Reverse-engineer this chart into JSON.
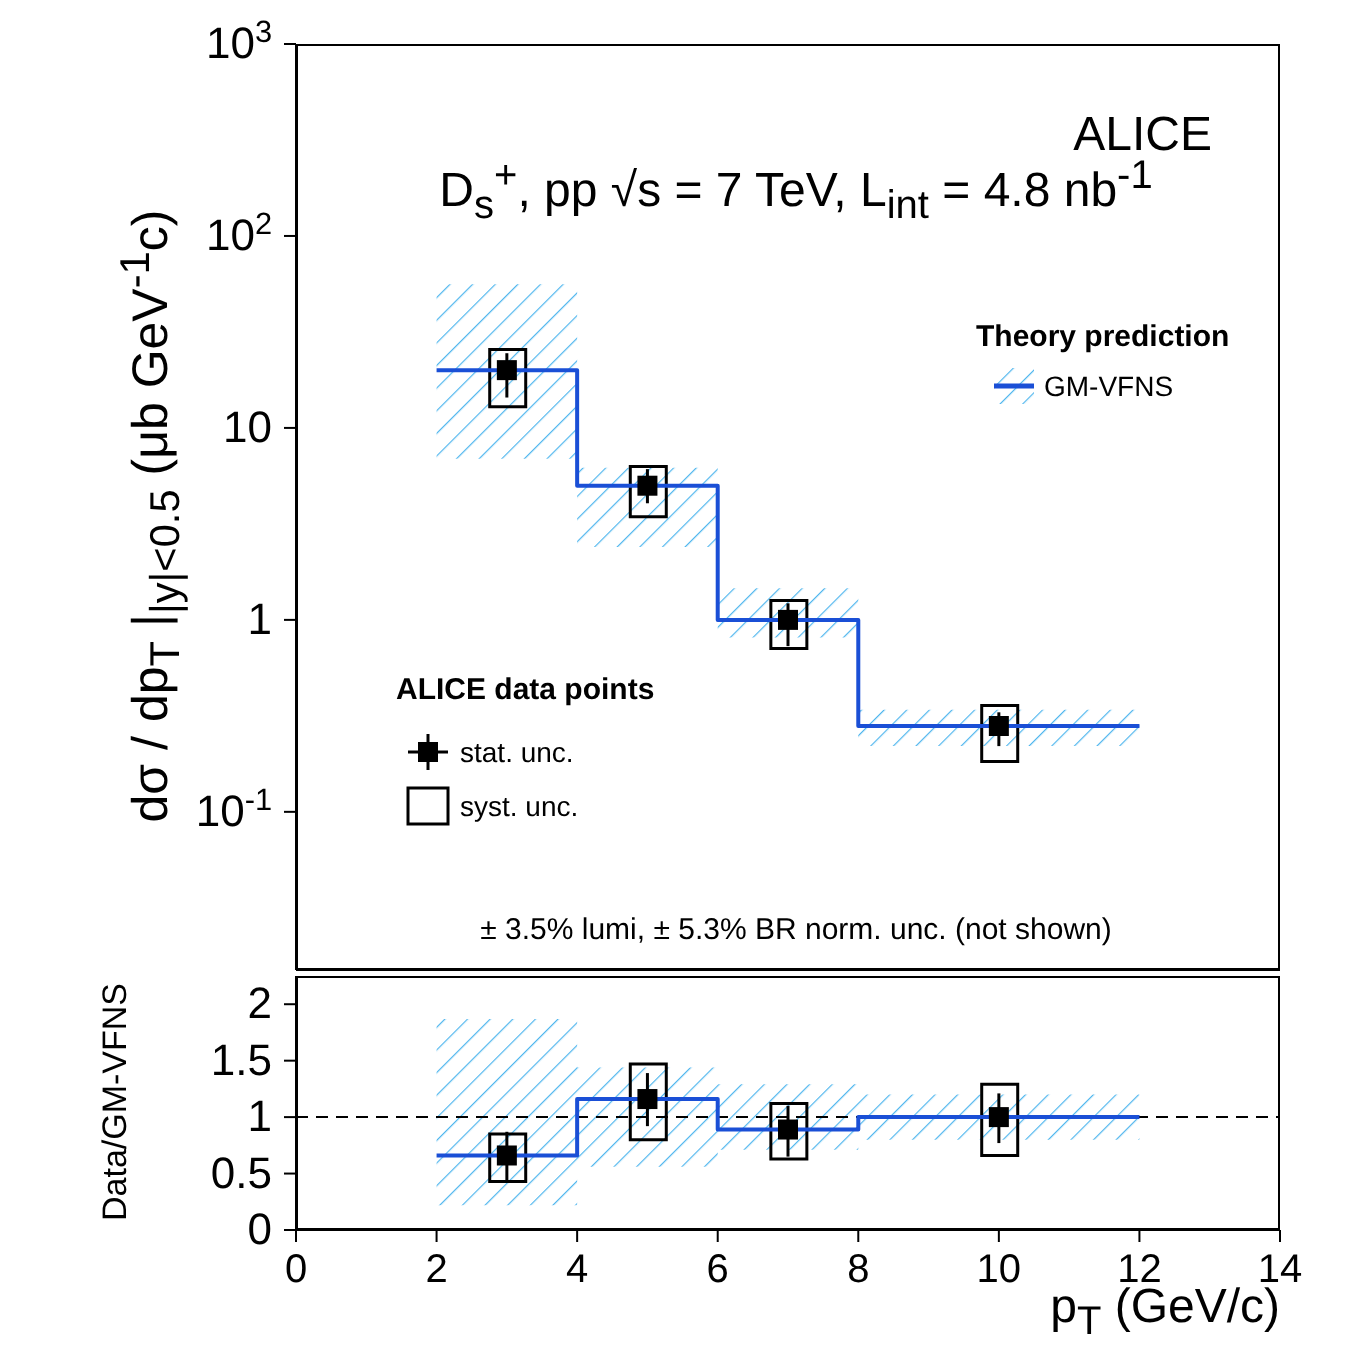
{
  "chart_data": [
    {
      "type": "scatter",
      "title": "D$_{s}$$^{+}$, pp √s = 7 TeV, L$_{int}$ = 4.8 nb$^{-1}$",
      "ylabel": "dσ / dp$_{T}$ |$_{|y|<0.5}$ (μb GeV$^{-1}$c)",
      "legend_title": "Theory prediction",
      "legend": "left",
      "annotations": [
        "ALICE",
        "ALICE data points",
        "± 3.5% lumi, ± 5.3% BR norm. unc. (not shown)"
      ],
      "log": "y",
      "xlim": [
        0,
        14
      ],
      "xticks": [
        0,
        2,
        4,
        6,
        8,
        10,
        12,
        14
      ],
      "ylim": [
        0.015,
        1000
      ],
      "yticks": [
        {
          "value": 0.1,
          "label": "10$^{-1}$"
        },
        1,
        10,
        {
          "value": 100,
          "label": "10$^{2}$"
        },
        {
          "value": 1000,
          "label": "10$^{3}$"
        }
      ],
      "tick_labels": "y",
      "series": [
        {
          "type": "step",
          "name": "GM-VFNS",
          "color": "#1a4fd6",
          "marker": "none",
          "x": [
            2,
            4,
            6,
            8,
            12
          ],
          "values": [
            20,
            5,
            1,
            0.28,
            0.28
          ],
          "lower": [
            6.9,
            2.4,
            0.81,
            0.22,
            0.22
          ],
          "upper": [
            56,
            6.2,
            1.46,
            0.34,
            0.34
          ]
        },
        {
          "name": "stat. unc.",
          "color": "#000000",
          "marker": "square",
          "x": [
            3,
            5,
            7,
            10
          ],
          "values": [
            20,
            5,
            1,
            0.28
          ],
          "errors": [
            [
              14.4,
              24.5
            ],
            [
              4.05,
              6.1
            ],
            [
              0.73,
              1.22
            ],
            [
              0.22,
              0.33
            ]
          ]
        },
        {
          "type": "bar",
          "name": "syst. unc.",
          "color": "#000000",
          "x": [
            3,
            5,
            7,
            10
          ],
          "base": [
            12.9,
            3.45,
            0.71,
            0.183
          ],
          "values": [
            12.7,
            2.85,
            0.55,
            0.175
          ]
        }
      ]
    },
    {
      "type": "scatter",
      "xlabel": "p$_{T}$ (GeV/c)",
      "ylabel": "Data/GM-VFNS",
      "xlim": [
        0,
        14
      ],
      "xticks": [
        0,
        2,
        4,
        6,
        8,
        10,
        12,
        14
      ],
      "ylim": [
        0,
        2.25
      ],
      "yticks": [
        0,
        0.5,
        1,
        1.5,
        2
      ],
      "ref_lines": [
        {
          "axis": "y",
          "value": 1,
          "color": "#000000",
          "line_style": "dashed"
        }
      ],
      "series": [
        {
          "type": "step",
          "color": "#1a4fd6",
          "marker": "none",
          "x": [
            2,
            4,
            6,
            8,
            12
          ],
          "values": [
            0.66,
            1.16,
            0.89,
            1.0,
            1.0
          ],
          "lower": [
            0.22,
            0.56,
            0.71,
            0.8,
            0.8
          ],
          "upper": [
            1.87,
            1.44,
            1.29,
            1.2,
            1.2
          ]
        },
        {
          "color": "#000000",
          "marker": "square",
          "x": [
            3,
            5,
            7,
            10
          ],
          "values": [
            0.66,
            1.16,
            0.89,
            1.0
          ],
          "errors": [
            [
              0.44,
              0.87
            ],
            [
              0.92,
              1.39
            ],
            [
              0.65,
              1.1
            ],
            [
              0.77,
              1.21
            ]
          ]
        },
        {
          "type": "bar",
          "color": "#000000",
          "x": [
            3,
            5,
            7,
            10
          ],
          "base": [
            0.43,
            0.8,
            0.63,
            0.66
          ],
          "values": [
            0.42,
            0.67,
            0.49,
            0.63
          ]
        }
      ]
    }
  ]
}
